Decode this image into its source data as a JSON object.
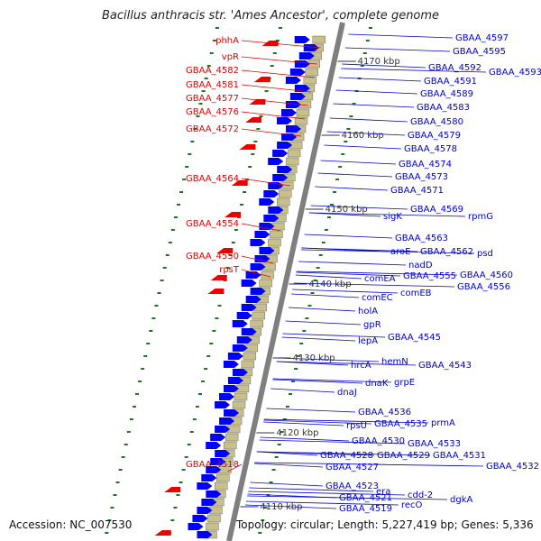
{
  "title": "Bacillus anthracis str. 'Ames Ancestor', complete genome",
  "accession_text": "Accession: NC_007530",
  "summary_text": "Topology: circular; Length: 5,227,419 bp; Genes: 5,336",
  "colors": {
    "left_label": "#e00000",
    "right_label": "#0000cc",
    "axis": "#808080",
    "tick": "#1a7a1a"
  },
  "kbp_ticks": [
    "4170 kbp",
    "4160 kbp",
    "4150 kbp",
    "4140 kbp",
    "4130 kbp",
    "4120 kbp",
    "4110 kbp"
  ],
  "left_labels": [
    "phhA",
    "vpR",
    "GBAA_4582",
    "GBAA_4581",
    "GBAA_4577",
    "GBAA_4576",
    "GBAA_4572",
    "GBAA_4564",
    "GBAA_4554",
    "GBAA_4550",
    "rpsT",
    "GBAA_4518"
  ],
  "right_labels": [
    "GBAA_4597",
    "GBAA_4595",
    "GBAA_4593",
    "GBAA_4592",
    "GBAA_4591",
    "GBAA_4589",
    "GBAA_4583",
    "GBAA_4580",
    "GBAA_4579",
    "GBAA_4578",
    "GBAA_4574",
    "GBAA_4573",
    "GBAA_4571",
    "GBAA_4569",
    "sigK",
    "rpmG",
    "GBAA_4563",
    "aroE",
    "GBAA_4562",
    "psd",
    "nadD",
    "GBAA_4555",
    "GBAA_4560",
    "comEA",
    "comEB",
    "GBAA_4556",
    "comEC",
    "holA",
    "gpR",
    "lepA",
    "GBAA_4545",
    "hrcA",
    "hemN",
    "GBAA_4543",
    "dnaK",
    "grpE",
    "dnaJ",
    "GBAA_4536",
    "rpsU",
    "GBAA_4535",
    "prmA",
    "GBAA_4530",
    "GBAA_4533",
    "GBAA_4528",
    "GBAA_4529",
    "GBAA_4531",
    "GBAA_4532",
    "GBAA_4527",
    "GBAA_4523",
    "era",
    "cdd-2",
    "GBAA_4521",
    "dgkA",
    "GBAA_4519",
    "recO"
  ]
}
